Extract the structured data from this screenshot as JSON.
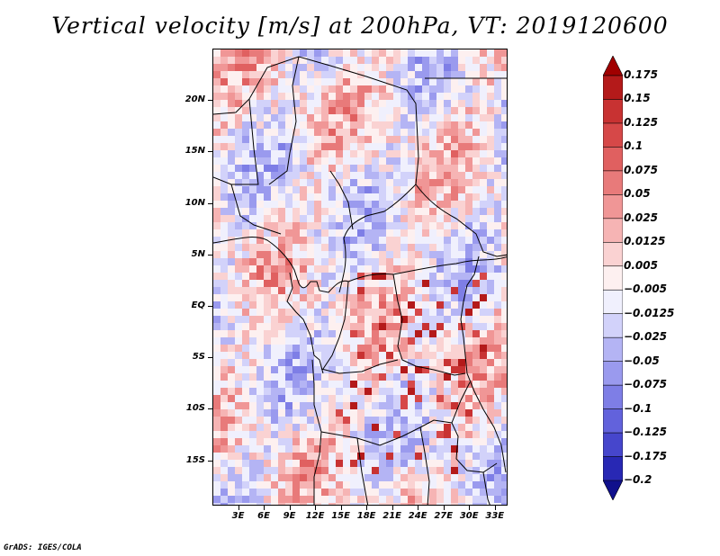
{
  "title": "Vertical velocity [m/s] at 200hPa, VT: 2019120600",
  "map": {
    "lat_labels": [
      "20N",
      "15N",
      "10N",
      "5N",
      "EQ",
      "5S",
      "10S",
      "15S"
    ],
    "lon_labels": [
      "3E",
      "6E",
      "9E",
      "12E",
      "15E",
      "18E",
      "21E",
      "24E",
      "27E",
      "30E",
      "33E"
    ],
    "lat_values": [
      20,
      15,
      10,
      5,
      0,
      -5,
      -10,
      -15
    ],
    "lon_values": [
      3,
      6,
      9,
      12,
      15,
      18,
      21,
      24,
      27,
      30,
      33
    ],
    "lon_range": [
      0,
      34.5
    ],
    "lat_range": [
      -19.4,
      25
    ],
    "variable": "Vertical velocity",
    "units": "m/s",
    "level": "200hPa",
    "valid_time": "2019120600"
  },
  "colorbar": {
    "labels": [
      "0.175",
      "0.15",
      "0.125",
      "0.1",
      "0.075",
      "0.05",
      "0.025",
      "0.0125",
      "0.005",
      "−0.005",
      "−0.0125",
      "−0.025",
      "−0.05",
      "−0.075",
      "−0.1",
      "−0.125",
      "−0.175",
      "−0.2"
    ],
    "colors": [
      "#a00000",
      "#b41a1a",
      "#c83232",
      "#d64848",
      "#e06060",
      "#e87a7a",
      "#f09696",
      "#f6b4b4",
      "#fad2d2",
      "#fdf0f0",
      "#f0f0fd",
      "#d2d2fa",
      "#b4b4f4",
      "#9a9aee",
      "#7e7ee6",
      "#6262dc",
      "#4646cc",
      "#2828b4",
      "#10108c"
    ]
  },
  "credit": "GrADS: IGES/COLA"
}
